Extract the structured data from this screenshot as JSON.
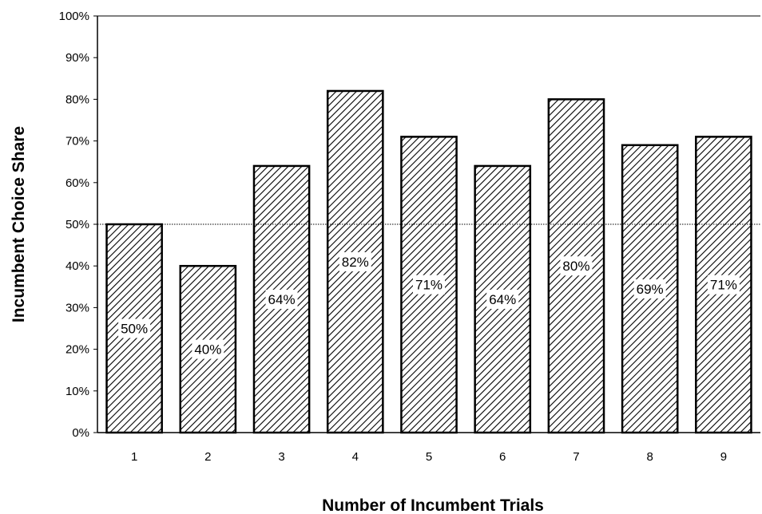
{
  "chart_data": {
    "type": "bar",
    "title": "",
    "xlabel": "Number of Incumbent Trials",
    "ylabel": "Incumbent Choice Share",
    "categories": [
      "1",
      "2",
      "3",
      "4",
      "5",
      "6",
      "7",
      "8",
      "9"
    ],
    "values": [
      50,
      40,
      64,
      82,
      71,
      64,
      80,
      69,
      71
    ],
    "data_labels": [
      "50%",
      "40%",
      "64%",
      "82%",
      "71%",
      "64%",
      "80%",
      "69%",
      "71%"
    ],
    "ylim": [
      0,
      100
    ],
    "y_ticks": [
      0,
      10,
      20,
      30,
      40,
      50,
      60,
      70,
      80,
      90,
      100
    ],
    "y_tick_labels": [
      "0%",
      "10%",
      "20%",
      "30%",
      "40%",
      "50%",
      "60%",
      "70%",
      "80%",
      "90%",
      "100%"
    ],
    "reference_line": 50,
    "bar_fill": "diagonal hatch",
    "colors": {
      "bar_stroke": "#000000",
      "hatch": "#000000",
      "background": "#ffffff"
    },
    "grid": false,
    "legend": "none"
  }
}
